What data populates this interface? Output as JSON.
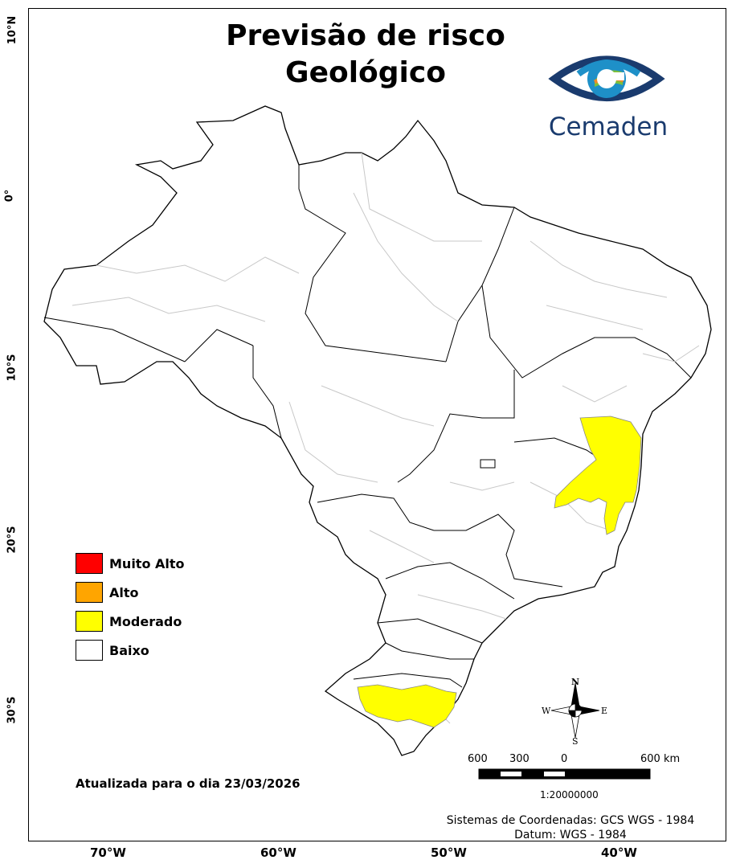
{
  "title": [
    "Previsão de risco",
    "Geológico"
  ],
  "logo": {
    "text": "Cemaden"
  },
  "legend": [
    {
      "label": "Muito Alto",
      "color": "#ff0000"
    },
    {
      "label": "Alto",
      "color": "#ffa500"
    },
    {
      "label": "Moderado",
      "color": "#ffff00"
    },
    {
      "label": "Baixo",
      "color": "#ffffff"
    }
  ],
  "updated": "Atualizada para o dia 23/03/2026",
  "coordinate_system": [
    "Sistemas de Coordenadas: GCS WGS - 1984",
    "Datum: WGS - 1984"
  ],
  "lat_labels": [
    "10°N",
    "0°",
    "10°S",
    "20°S",
    "30°S"
  ],
  "lon_labels": [
    "70°W",
    "60°W",
    "50°W",
    "40°W"
  ],
  "scale_bar": {
    "ticks": [
      "600",
      "300",
      "0",
      "600 km"
    ],
    "ratio": "1:20000000"
  },
  "compass": {
    "n": "N",
    "s": "S",
    "e": "E",
    "w": "W"
  },
  "colors": {
    "border": "#000000",
    "municipal_lines": "#c8c8c8",
    "moderate": "#ffff00"
  },
  "highlighted_regions": [
    "Bahia/Minas Gerais/Espírito Santo (Moderado)",
    "Rio Grande do Sul (Moderado)"
  ]
}
